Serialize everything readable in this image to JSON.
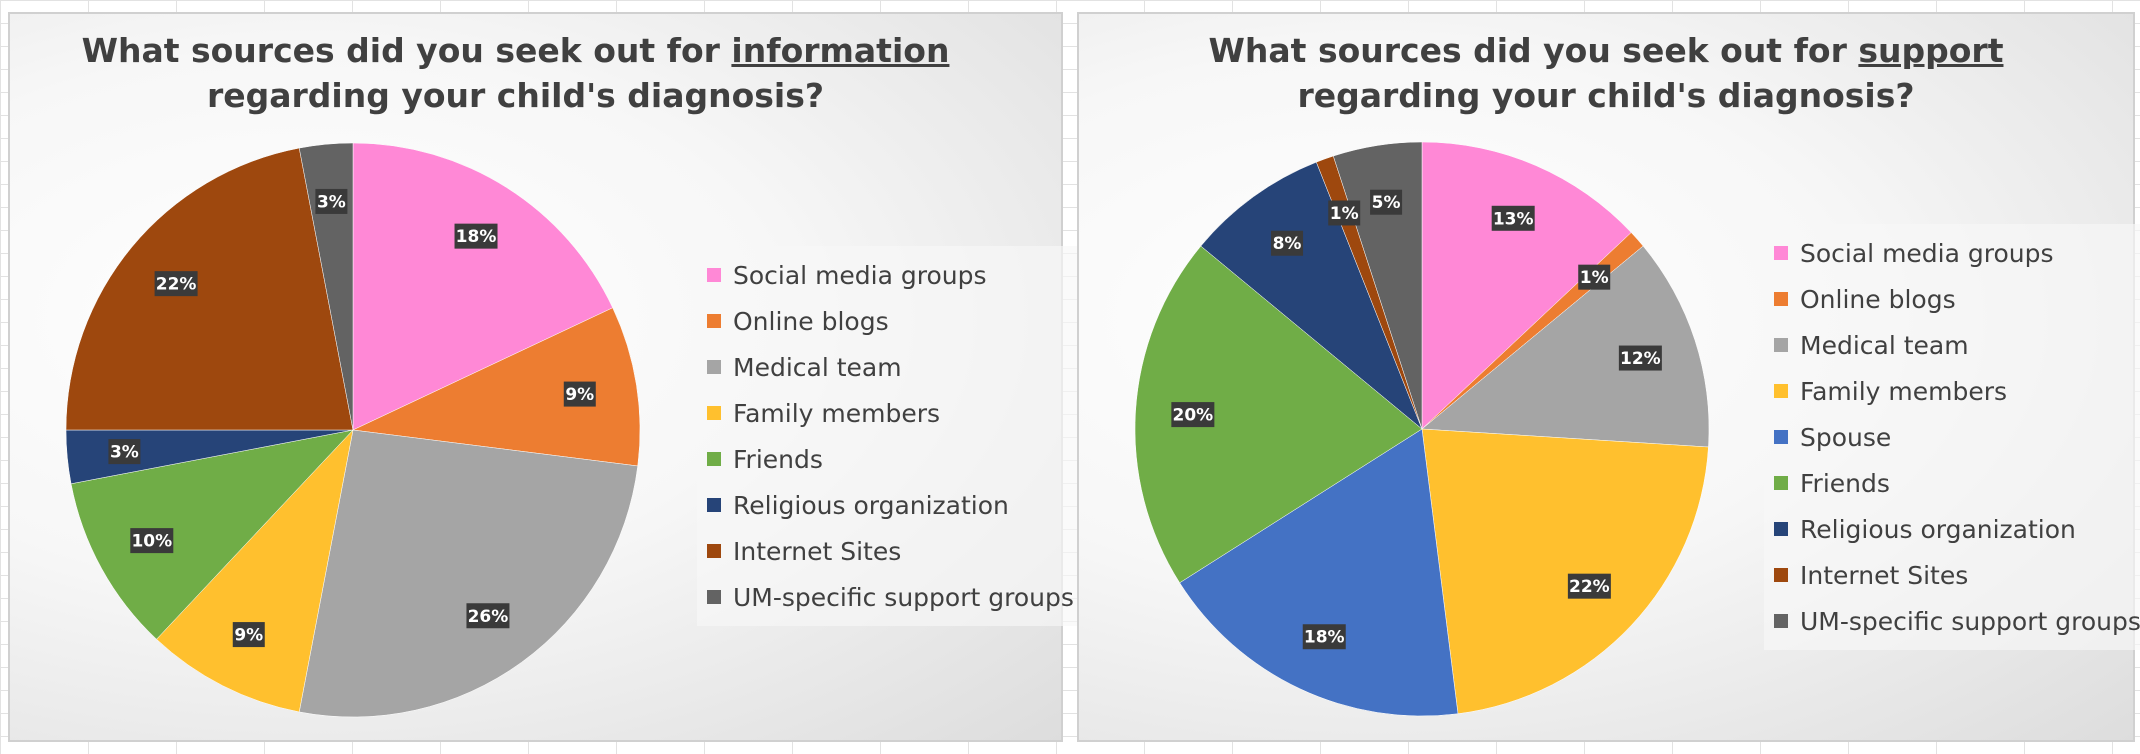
{
  "chart_data": [
    {
      "type": "pie",
      "title_parts": [
        "What sources did you seek out for ",
        "information",
        " regarding your child's diagnosis?"
      ],
      "categories": [
        "Social media groups",
        "Online blogs",
        "Medical team",
        "Family members",
        "Friends",
        "Religious organization",
        "Internet Sites",
        "UM-specific support groups"
      ],
      "values": [
        18,
        9,
        26,
        9,
        10,
        3,
        22,
        3
      ],
      "labels": [
        "18%",
        "9%",
        "26%",
        "9%",
        "10%",
        "3%",
        "22%",
        "3%"
      ],
      "colors": [
        "#ff88d6",
        "#ed7d31",
        "#a5a5a5",
        "#ffc02e",
        "#70ad47",
        "#264478",
        "#9e480e",
        "#636363"
      ],
      "legend_position": "right"
    },
    {
      "type": "pie",
      "title_parts": [
        "What sources did you seek out for ",
        "support",
        " regarding your child's diagnosis?"
      ],
      "categories": [
        "Social media groups",
        "Online blogs",
        "Medical team",
        "Family members",
        "Spouse",
        "Friends",
        "Religious organization",
        "Internet Sites",
        "UM-specific support groups"
      ],
      "values": [
        13,
        1,
        12,
        22,
        18,
        20,
        8,
        1,
        5
      ],
      "labels": [
        "13%",
        "1%",
        "12%",
        "22%",
        "18%",
        "20%",
        "8%",
        "1%",
        "5%"
      ],
      "colors": [
        "#ff88d6",
        "#ed7d31",
        "#a5a5a5",
        "#ffc02e",
        "#4472c4",
        "#70ad47",
        "#264478",
        "#9e480e",
        "#636363"
      ],
      "legend_position": "right"
    }
  ]
}
